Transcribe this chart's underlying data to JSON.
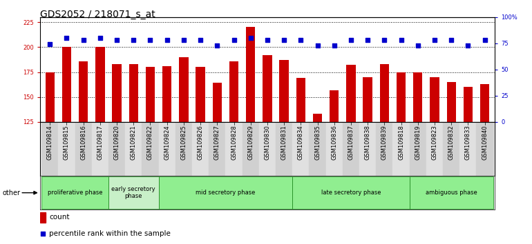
{
  "title": "GDS2052 / 218071_s_at",
  "samples": [
    "GSM109814",
    "GSM109815",
    "GSM109816",
    "GSM109817",
    "GSM109820",
    "GSM109821",
    "GSM109822",
    "GSM109824",
    "GSM109825",
    "GSM109826",
    "GSM109827",
    "GSM109828",
    "GSM109829",
    "GSM109830",
    "GSM109831",
    "GSM109834",
    "GSM109835",
    "GSM109836",
    "GSM109837",
    "GSM109838",
    "GSM109839",
    "GSM109818",
    "GSM109819",
    "GSM109823",
    "GSM109832",
    "GSM109833",
    "GSM109840"
  ],
  "counts": [
    175,
    200,
    186,
    200,
    183,
    183,
    180,
    181,
    190,
    180,
    164,
    186,
    220,
    192,
    187,
    169,
    133,
    157,
    182,
    170,
    183,
    175,
    175,
    170,
    165,
    160,
    163
  ],
  "percentiles": [
    74,
    80,
    78,
    80,
    78,
    78,
    78,
    78,
    78,
    78,
    73,
    78,
    80,
    78,
    78,
    78,
    73,
    73,
    78,
    78,
    78,
    78,
    73,
    78,
    78,
    73,
    78
  ],
  "phases": [
    {
      "label": "proliferative phase",
      "start": 0,
      "end": 4,
      "color": "#90EE90"
    },
    {
      "label": "early secretory\nphase",
      "start": 4,
      "end": 7,
      "color": "#c8f0c8"
    },
    {
      "label": "mid secretory phase",
      "start": 7,
      "end": 15,
      "color": "#90EE90"
    },
    {
      "label": "late secretory phase",
      "start": 15,
      "end": 22,
      "color": "#90EE90"
    },
    {
      "label": "ambiguous phase",
      "start": 22,
      "end": 27,
      "color": "#90EE90"
    }
  ],
  "ylim_left": [
    125,
    230
  ],
  "ylim_right": [
    0,
    100
  ],
  "bar_color": "#cc0000",
  "dot_color": "#0000cc",
  "title_fontsize": 10,
  "tick_fontsize": 6,
  "label_fontsize": 7.5,
  "yticks_left": [
    125,
    150,
    175,
    200,
    225
  ],
  "yticks_right": [
    0,
    25,
    50,
    75,
    100
  ],
  "ytick_labels_right": [
    "0",
    "25",
    "50",
    "75",
    "100%"
  ]
}
